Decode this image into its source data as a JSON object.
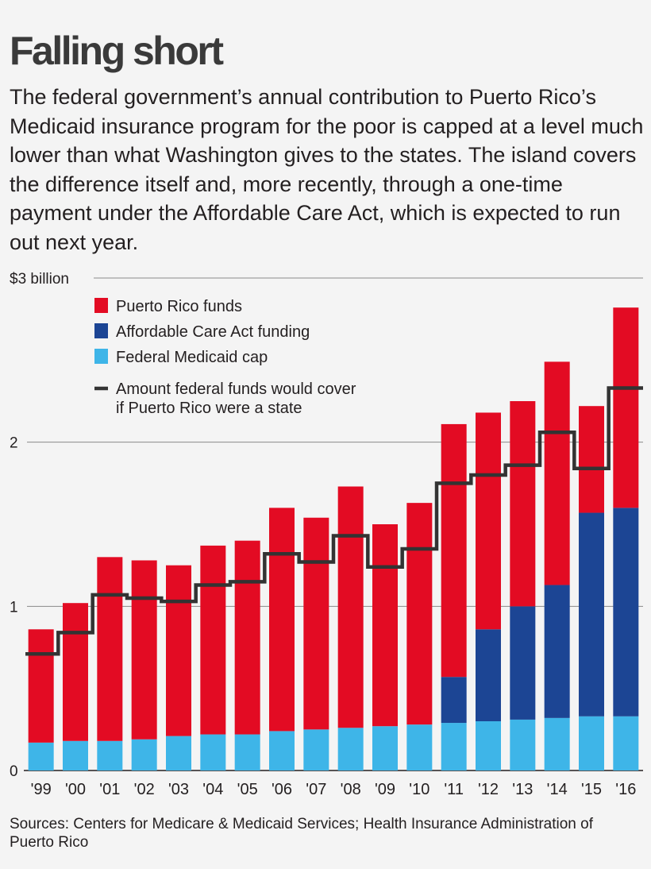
{
  "chart_data": {
    "type": "bar",
    "title": "Falling short",
    "subtitle": "The federal government’s annual contribution to Puerto Rico’s Medicaid insurance program for the poor is capped at a level much lower than what Washington gives to the states. The island covers the difference itself and, more recently, through a one-time payment under the Affordable Care Act, which is expected to run out next year.",
    "categories": [
      "'99",
      "'00",
      "'01",
      "'02",
      "'03",
      "'04",
      "'05",
      "'06",
      "'07",
      "'08",
      "'09",
      "'10",
      "'11",
      "'12",
      "'13",
      "'14",
      "'15",
      "'16"
    ],
    "stacked": true,
    "series": [
      {
        "name": "Federal Medicaid cap",
        "color": "#3eb5e8",
        "values": [
          0.17,
          0.18,
          0.18,
          0.19,
          0.21,
          0.22,
          0.22,
          0.24,
          0.25,
          0.26,
          0.27,
          0.28,
          0.29,
          0.3,
          0.31,
          0.32,
          0.33,
          0.33
        ]
      },
      {
        "name": "Affordable Care Act funding",
        "color": "#1c4594",
        "values": [
          0,
          0,
          0,
          0,
          0,
          0,
          0,
          0,
          0,
          0,
          0,
          0,
          0.28,
          0.56,
          0.69,
          0.81,
          1.24,
          1.27
        ]
      },
      {
        "name": "Puerto Rico funds",
        "color": "#e30b23",
        "values": [
          0.69,
          0.84,
          1.12,
          1.09,
          1.04,
          1.15,
          1.18,
          1.36,
          1.29,
          1.47,
          1.23,
          1.35,
          1.54,
          1.32,
          1.25,
          1.36,
          0.65,
          1.22
        ]
      }
    ],
    "line_series": {
      "name": "Amount federal funds would cover if Puerto Rico were a state",
      "color": "#333333",
      "values": [
        0.71,
        0.84,
        1.07,
        1.05,
        1.03,
        1.13,
        1.15,
        1.32,
        1.27,
        1.43,
        1.24,
        1.35,
        1.75,
        1.8,
        1.86,
        2.06,
        1.84,
        2.33
      ]
    },
    "legend": {
      "placement": "top-left",
      "entries": [
        {
          "label": "Puerto Rico funds",
          "color": "#e30b23",
          "kind": "swatch"
        },
        {
          "label": "Affordable Care Act funding",
          "color": "#1c4594",
          "kind": "swatch"
        },
        {
          "label": "Federal Medicaid cap",
          "color": "#3eb5e8",
          "kind": "swatch"
        },
        {
          "label": "Amount federal funds would cover",
          "label2": "if Puerto Rico were a state",
          "color": "#333333",
          "kind": "line"
        }
      ]
    },
    "yticks": [
      {
        "value": 3,
        "label": "$3 billion"
      },
      {
        "value": 2,
        "label": "2"
      },
      {
        "value": 1,
        "label": "1"
      },
      {
        "value": 0,
        "label": "0"
      }
    ],
    "ylim": [
      0,
      3
    ],
    "grid": true,
    "xlabel": "",
    "ylabel": ""
  },
  "source": "Sources: Centers for Medicare & Medicaid Services; Health Insurance Administration of Puerto Rico"
}
